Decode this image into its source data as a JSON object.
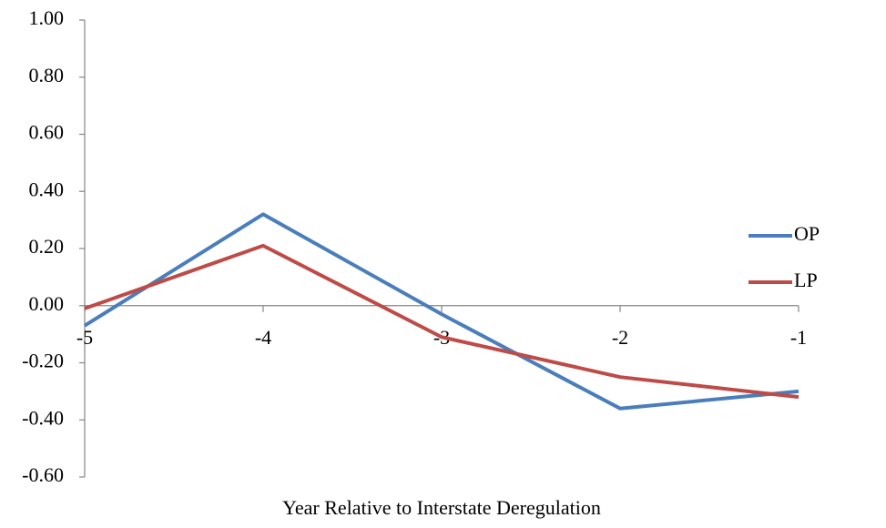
{
  "chart_data": {
    "type": "line",
    "x_label": "Year Relative to Interstate Deregulation",
    "x": [
      -5,
      -4,
      -3,
      -2,
      -1
    ],
    "xlim": [
      -5,
      -1
    ],
    "xticks": [
      -5,
      -4,
      -3,
      -2,
      -1
    ],
    "ylim": [
      -0.6,
      1.0
    ],
    "yticks": [
      {
        "value": -0.6,
        "label": "-0.60"
      },
      {
        "value": -0.4,
        "label": "-0.40"
      },
      {
        "value": -0.2,
        "label": "-0.20"
      },
      {
        "value": 0,
        "label": "0.00"
      },
      {
        "value": 0.2,
        "label": "0.20"
      },
      {
        "value": 0.4,
        "label": "0.40"
      },
      {
        "value": 0.6,
        "label": "0.60"
      },
      {
        "value": 0.8,
        "label": "0.80"
      },
      {
        "value": 1.0,
        "label": "1.00"
      }
    ],
    "legend": "right",
    "series": [
      {
        "name": "OP",
        "color": "#4a7ebb",
        "values": [
          -0.07,
          0.32,
          -0.03,
          -0.36,
          -0.3
        ]
      },
      {
        "name": "LP",
        "color": "#be4b48",
        "values": [
          -0.01,
          0.21,
          -0.11,
          -0.25,
          -0.32
        ]
      }
    ]
  }
}
